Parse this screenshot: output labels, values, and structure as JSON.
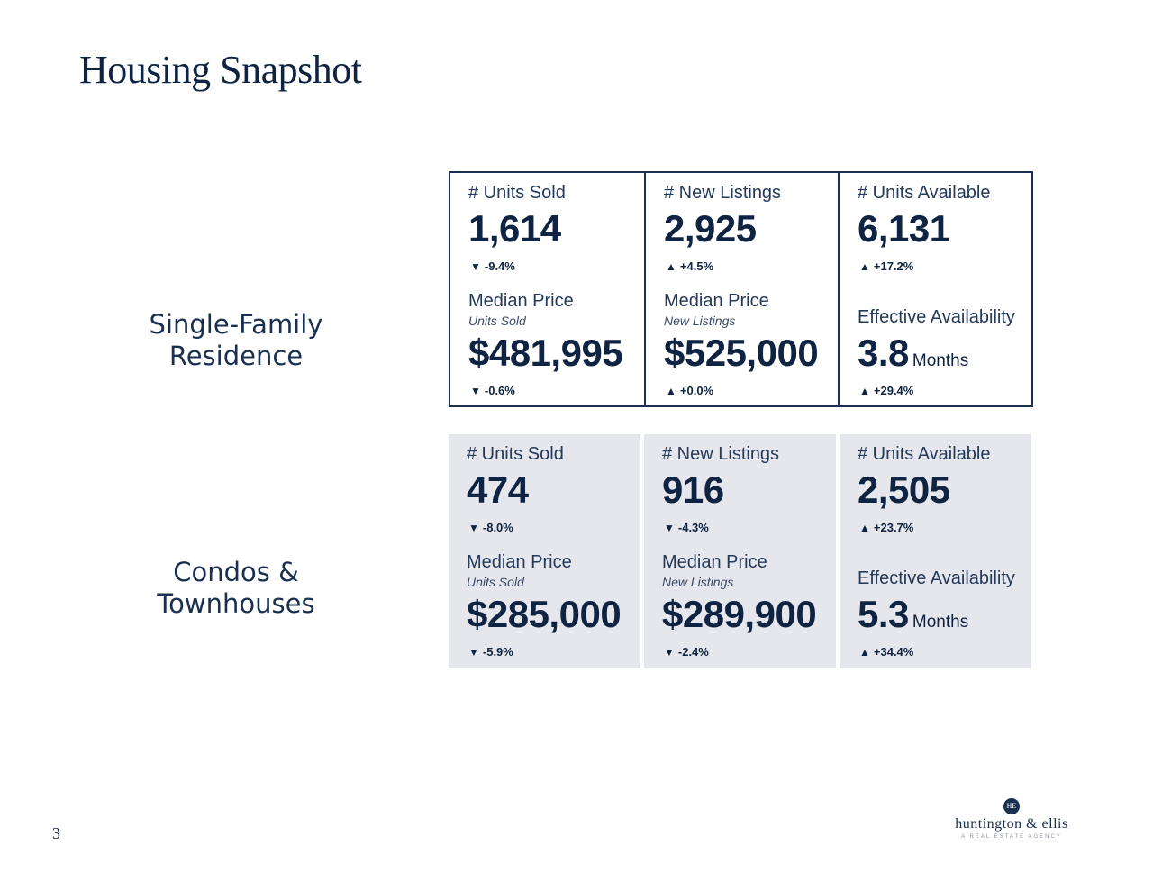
{
  "page": {
    "title": "Housing Snapshot",
    "page_number": "3"
  },
  "rows": [
    {
      "label_line1": "Single-Family",
      "label_line2": "Residence",
      "cells": [
        {
          "label": "# Units Sold",
          "value": "1,614",
          "change_dir": "down",
          "change": "-9.4%",
          "label2": "Median Price",
          "sublabel2": "Units Sold",
          "value2": "$481,995",
          "unit2": "",
          "change2_dir": "down",
          "change2": "-0.6%"
        },
        {
          "label": "# New Listings",
          "value": "2,925",
          "change_dir": "up",
          "change": "+4.5%",
          "label2": "Median Price",
          "sublabel2": "New Listings",
          "value2": "$525,000",
          "unit2": "",
          "change2_dir": "up",
          "change2": "+0.0%"
        },
        {
          "label": "# Units Available",
          "value": "6,131",
          "change_dir": "up",
          "change": "+17.2%",
          "label2": "Effective Availability",
          "sublabel2": "",
          "value2": "3.8",
          "unit2": "Months",
          "change2_dir": "up",
          "change2": "+29.4%"
        }
      ]
    },
    {
      "label_line1": "Condos &",
      "label_line2": "Townhouses",
      "cells": [
        {
          "label": "# Units Sold",
          "value": "474",
          "change_dir": "down",
          "change": "-8.0%",
          "label2": "Median Price",
          "sublabel2": "Units Sold",
          "value2": "$285,000",
          "unit2": "",
          "change2_dir": "down",
          "change2": "-5.9%"
        },
        {
          "label": "# New Listings",
          "value": "916",
          "change_dir": "down",
          "change": "-4.3%",
          "label2": "Median Price",
          "sublabel2": "New Listings",
          "value2": "$289,900",
          "unit2": "",
          "change2_dir": "down",
          "change2": "-2.4%"
        },
        {
          "label": "# Units Available",
          "value": "2,505",
          "change_dir": "up",
          "change": "+23.7%",
          "label2": "Effective Availability",
          "sublabel2": "",
          "value2": "5.3",
          "unit2": "Months",
          "change2_dir": "up",
          "change2": "+34.4%"
        }
      ]
    }
  ],
  "logo": {
    "mark": "HE",
    "name": "huntington & ellis",
    "tagline": "A REAL ESTATE AGENCY"
  },
  "colors": {
    "navy": "#0f2442",
    "panel": "#e6e7ec"
  }
}
